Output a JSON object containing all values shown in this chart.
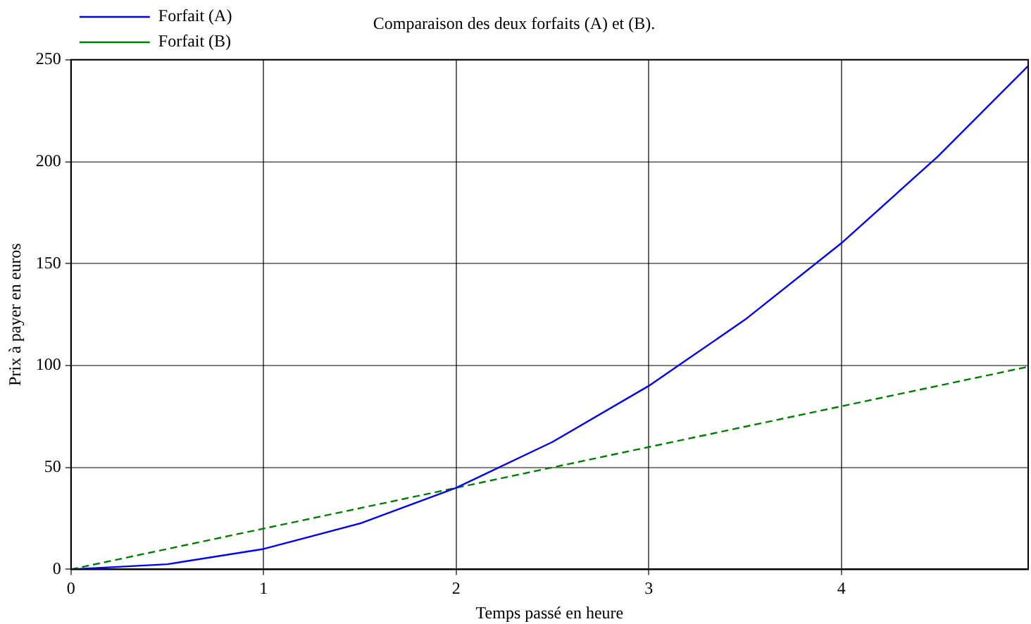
{
  "chart_data": {
    "type": "line",
    "title": "Comparaison des deux forfaits (A) et (B).",
    "xlabel": "Temps passé en heure",
    "ylabel": "Prix à payer en euros",
    "xlim": [
      0,
      4.97
    ],
    "xticks": [
      0,
      1,
      2,
      3,
      4
    ],
    "ylim": [
      0,
      250
    ],
    "yticks": [
      0,
      50,
      100,
      150,
      200,
      250
    ],
    "grid": true,
    "legend": "top left",
    "marker": "none",
    "series": [
      {
        "name": "Forfait (A)",
        "color": "#0000ff",
        "line_style": "solid",
        "x": [
          0,
          0.5,
          1,
          1.5,
          2,
          2.5,
          3,
          3.5,
          4,
          4.5,
          4.97
        ],
        "values": [
          0,
          2.5,
          10,
          22.5,
          40,
          62.5,
          90,
          122.5,
          160,
          202.5,
          247
        ]
      },
      {
        "name": "Forfait (B)",
        "color": "#008000",
        "line_style": "dashed",
        "x": [
          0,
          1,
          2,
          3,
          4,
          4.97
        ],
        "values": [
          0,
          20,
          40,
          60,
          80,
          99.4
        ]
      }
    ]
  }
}
